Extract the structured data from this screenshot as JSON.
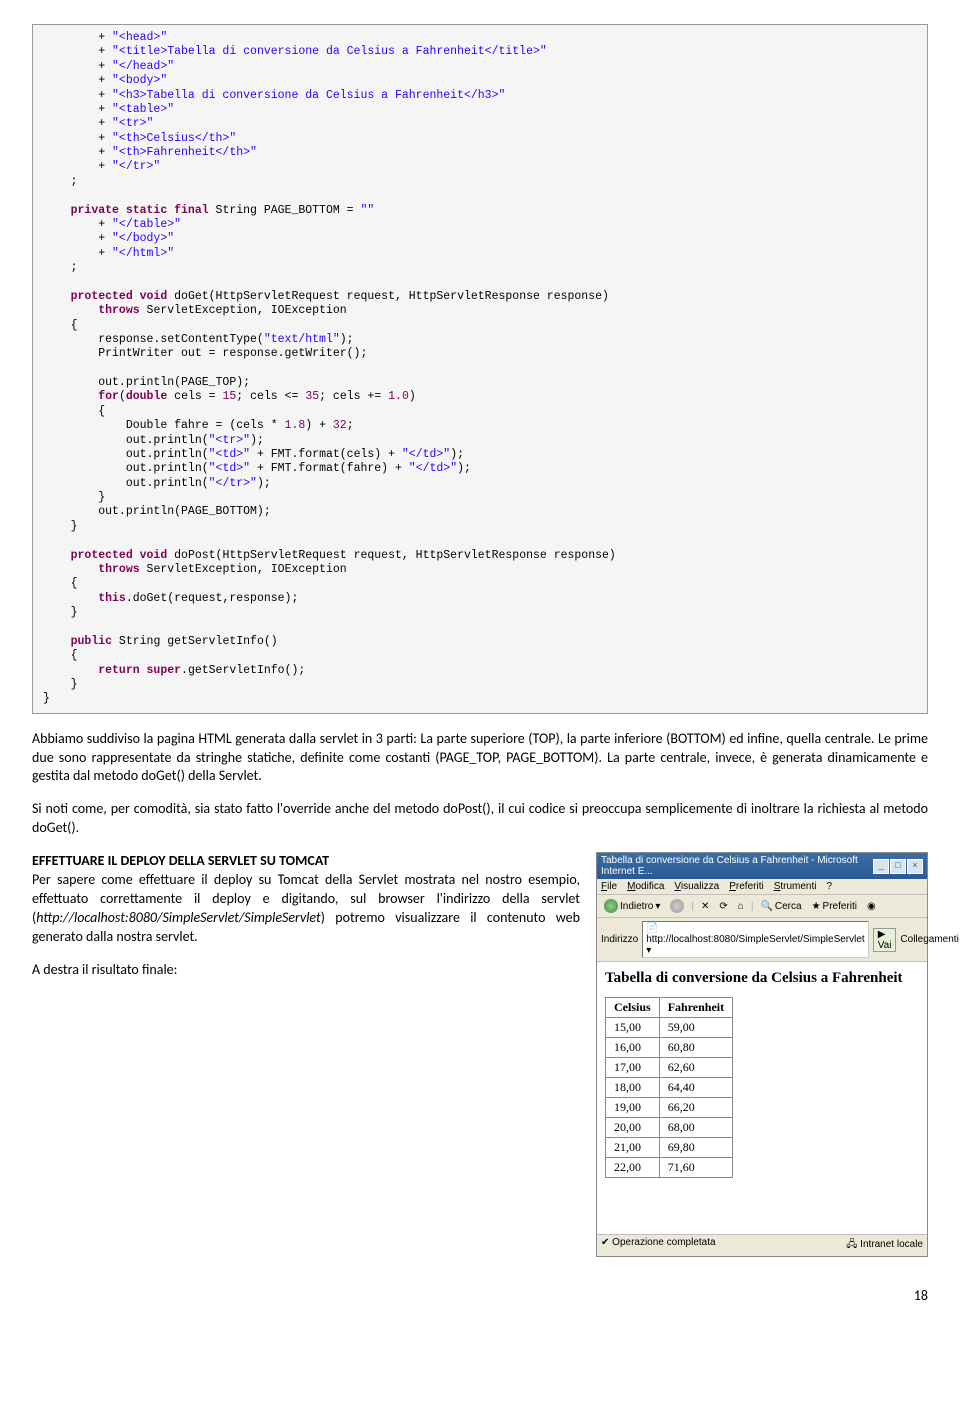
{
  "code": {
    "lines": [
      [
        [
          "        + ",
          ""
        ],
        [
          "\"<head>\"",
          "str"
        ]
      ],
      [
        [
          "        + ",
          ""
        ],
        [
          "\"<title>Tabella di conversione da Celsius a Fahrenheit</title>\"",
          "str"
        ]
      ],
      [
        [
          "        + ",
          ""
        ],
        [
          "\"</head>\"",
          "str"
        ]
      ],
      [
        [
          "        + ",
          ""
        ],
        [
          "\"<body>\"",
          "str"
        ]
      ],
      [
        [
          "        + ",
          ""
        ],
        [
          "\"<h3>Tabella di conversione da Celsius a Fahrenheit</h3>\"",
          "str"
        ]
      ],
      [
        [
          "        + ",
          ""
        ],
        [
          "\"<table>\"",
          "str"
        ]
      ],
      [
        [
          "        + ",
          ""
        ],
        [
          "\"<tr>\"",
          "str"
        ]
      ],
      [
        [
          "        + ",
          ""
        ],
        [
          "\"<th>Celsius</th>\"",
          "str"
        ]
      ],
      [
        [
          "        + ",
          ""
        ],
        [
          "\"<th>Fahrenheit</th>\"",
          "str"
        ]
      ],
      [
        [
          "        + ",
          ""
        ],
        [
          "\"</tr>\"",
          "str"
        ]
      ],
      [
        [
          "    ;",
          ""
        ]
      ],
      [
        [
          "",
          ""
        ]
      ],
      [
        [
          "    ",
          ""
        ],
        [
          "private static final",
          "kw"
        ],
        [
          " String PAGE_BOTTOM = ",
          ""
        ],
        [
          "\"\"",
          "str"
        ]
      ],
      [
        [
          "        + ",
          ""
        ],
        [
          "\"</table>\"",
          "str"
        ]
      ],
      [
        [
          "        + ",
          ""
        ],
        [
          "\"</body>\"",
          "str"
        ]
      ],
      [
        [
          "        + ",
          ""
        ],
        [
          "\"</html>\"",
          "str"
        ]
      ],
      [
        [
          "    ;",
          ""
        ]
      ],
      [
        [
          "",
          ""
        ]
      ],
      [
        [
          "    ",
          ""
        ],
        [
          "protected void",
          "kw"
        ],
        [
          " doGet(HttpServletRequest request, HttpServletResponse response)",
          ""
        ]
      ],
      [
        [
          "        ",
          ""
        ],
        [
          "throws",
          "kw"
        ],
        [
          " ServletException, IOException",
          ""
        ]
      ],
      [
        [
          "    {",
          ""
        ]
      ],
      [
        [
          "        response.setContentType(",
          ""
        ],
        [
          "\"text/html\"",
          "str"
        ],
        [
          ");",
          ""
        ]
      ],
      [
        [
          "        PrintWriter out = response.getWriter();",
          ""
        ]
      ],
      [
        [
          "",
          ""
        ]
      ],
      [
        [
          "        out.println(PAGE_TOP);",
          ""
        ]
      ],
      [
        [
          "        ",
          ""
        ],
        [
          "for",
          "kw"
        ],
        [
          "(",
          ""
        ],
        [
          "double",
          "kw"
        ],
        [
          " cels = ",
          ""
        ],
        [
          "15",
          "num"
        ],
        [
          "; cels <= ",
          ""
        ],
        [
          "35",
          "num"
        ],
        [
          "; cels += ",
          ""
        ],
        [
          "1.0",
          "num"
        ],
        [
          ")",
          ""
        ]
      ],
      [
        [
          "        {",
          ""
        ]
      ],
      [
        [
          "            Double fahre = (cels * ",
          ""
        ],
        [
          "1.8",
          "num"
        ],
        [
          ") + ",
          ""
        ],
        [
          "32",
          "num"
        ],
        [
          ";",
          ""
        ]
      ],
      [
        [
          "            out.println(",
          ""
        ],
        [
          "\"<tr>\"",
          "str"
        ],
        [
          ");",
          ""
        ]
      ],
      [
        [
          "            out.println(",
          ""
        ],
        [
          "\"<td>\"",
          "str"
        ],
        [
          " + FMT.format(cels) + ",
          ""
        ],
        [
          "\"</td>\"",
          "str"
        ],
        [
          ");",
          ""
        ]
      ],
      [
        [
          "            out.println(",
          ""
        ],
        [
          "\"<td>\"",
          "str"
        ],
        [
          " + FMT.format(fahre) + ",
          ""
        ],
        [
          "\"</td>\"",
          "str"
        ],
        [
          ");",
          ""
        ]
      ],
      [
        [
          "            out.println(",
          ""
        ],
        [
          "\"</tr>\"",
          "str"
        ],
        [
          ");",
          ""
        ]
      ],
      [
        [
          "        }",
          ""
        ]
      ],
      [
        [
          "        out.println(PAGE_BOTTOM);",
          ""
        ]
      ],
      [
        [
          "    }",
          ""
        ]
      ],
      [
        [
          "",
          ""
        ]
      ],
      [
        [
          "    ",
          ""
        ],
        [
          "protected void",
          "kw"
        ],
        [
          " doPost(HttpServletRequest request, HttpServletResponse response)",
          ""
        ]
      ],
      [
        [
          "        ",
          ""
        ],
        [
          "throws",
          "kw"
        ],
        [
          " ServletException, IOException",
          ""
        ]
      ],
      [
        [
          "    {",
          ""
        ]
      ],
      [
        [
          "        ",
          ""
        ],
        [
          "this",
          "kw"
        ],
        [
          ".doGet(request,response);",
          ""
        ]
      ],
      [
        [
          "    }",
          ""
        ]
      ],
      [
        [
          "",
          ""
        ]
      ],
      [
        [
          "    ",
          ""
        ],
        [
          "public",
          "kw"
        ],
        [
          " String getServletInfo()",
          ""
        ]
      ],
      [
        [
          "    {",
          ""
        ]
      ],
      [
        [
          "        ",
          ""
        ],
        [
          "return super",
          "kw"
        ],
        [
          ".getServletInfo();",
          ""
        ]
      ],
      [
        [
          "    }",
          ""
        ]
      ],
      [
        [
          "}",
          ""
        ]
      ]
    ]
  },
  "para1": "Abbiamo suddiviso la pagina HTML generata dalla servlet in 3 parti: La parte superiore (TOP), la parte inferiore (BOTTOM) ed infine, quella centrale. Le prime due sono rappresentate da stringhe statiche, definite come costanti (PAGE_TOP, PAGE_BOTTOM). La parte centrale, invece, è generata dinamicamente e gestita dal metodo doGet() della Servlet.",
  "para2": "Si noti come, per comodità, sia stato fatto l'override anche del metodo doPost(), il cui codice si preoccupa semplicemente di inoltrare la richiesta al metodo doGet().",
  "heading3": "EFFETTUARE IL DEPLOY DELLA SERVLET SU TOMCAT",
  "para3a": "Per sapere come effettuare il deploy su Tomcat della Servlet mostrata nel nostro esempio, effettuato correttamente il deploy e digitando, sul browser l'indirizzo della servlet (",
  "para3url": "http://localhost:8080/SimpleServlet/SimpleServlet",
  "para3b": ") potremo visualizzare il contenuto web generato dalla nostra servlet.",
  "para4": "A destra il risultato finale:",
  "browser": {
    "title": "Tabella di conversione da Celsius a Fahrenheit - Microsoft Internet E...",
    "menus": [
      "File",
      "Modifica",
      "Visualizza",
      "Preferiti",
      "Strumenti",
      "?"
    ],
    "back": "Indietro",
    "search": "Cerca",
    "fav": "Preferiti",
    "addr_label": "Indirizzo",
    "addr_value": "http://localhost:8080/SimpleServlet/SimpleServlet",
    "go": "Vai",
    "links": "Collegamenti",
    "page_heading": "Tabella di conversione da Celsius a Fahrenheit",
    "th1": "Celsius",
    "th2": "Fahrenheit",
    "rows": [
      [
        "15,00",
        "59,00"
      ],
      [
        "16,00",
        "60,80"
      ],
      [
        "17,00",
        "62,60"
      ],
      [
        "18,00",
        "64,40"
      ],
      [
        "19,00",
        "66,20"
      ],
      [
        "20,00",
        "68,00"
      ],
      [
        "21,00",
        "69,80"
      ],
      [
        "22,00",
        "71,60"
      ]
    ],
    "status_left": "Operazione completata",
    "status_right": "Intranet locale"
  },
  "page_number": "18"
}
